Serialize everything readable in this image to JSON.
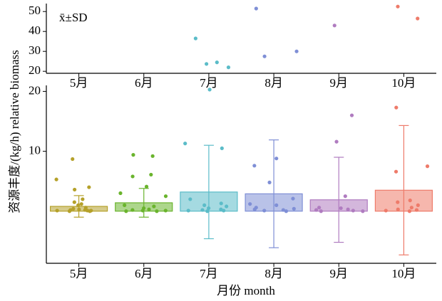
{
  "chart_data": {
    "type": "bar",
    "annotation": "x̄±SD",
    "xlabel": "月份 month",
    "ylabel": "资源丰度/(kg/h) relative biomass",
    "categories": [
      "5月",
      "6月",
      "7月",
      "8月",
      "9月",
      "10月"
    ],
    "values": [
      0.8,
      1.4,
      3.2,
      2.9,
      1.9,
      3.5
    ],
    "errors": [
      1.8,
      2.4,
      7.8,
      9.0,
      7.1,
      10.8
    ],
    "colors": [
      "#b5a12a",
      "#6ab42d",
      "#5bbcc8",
      "#7f8fd6",
      "#b07cc0",
      "#ee7b6a"
    ],
    "points": [
      [
        8.7,
        5.3,
        4.0,
        3.6,
        2.0,
        1.5,
        1.2,
        1.0,
        0.6,
        0.4,
        0.3,
        0.2,
        0.2,
        0.1,
        0.1,
        0.1,
        0.0,
        0.0
      ],
      [
        9.4,
        9.2,
        6.1,
        5.8,
        4.1,
        3.0,
        2.5,
        1.0,
        0.8,
        0.5,
        0.3,
        0.2,
        0.1,
        0.1,
        0.0,
        0.0
      ],
      [
        36.5,
        24.5,
        23.7,
        20.3,
        22.0,
        11.3,
        10.5,
        2.0,
        1.3,
        1.0,
        0.8,
        0.5,
        0.3,
        0.2,
        0.1,
        0.1,
        0.0
      ],
      [
        51.5,
        30.0,
        27.5,
        8.8,
        7.6,
        4.8,
        2.1,
        1.2,
        1.0,
        0.6,
        0.4,
        0.3,
        0.2,
        0.1,
        0.0
      ],
      [
        43.0,
        16.0,
        11.6,
        2.5,
        0.6,
        0.5,
        0.3,
        0.2,
        0.1,
        0.0,
        0.0
      ],
      [
        52.5,
        46.5,
        17.3,
        7.5,
        6.6,
        1.8,
        1.5,
        1.0,
        0.6,
        0.3,
        0.2,
        0.1,
        0.0
      ]
    ],
    "ylim": [
      -8.7,
      21
    ],
    "yticks": [
      10,
      20
    ],
    "upper_ylim": [
      19,
      54
    ],
    "upper_yticks": [
      20,
      30,
      40,
      50
    ]
  }
}
